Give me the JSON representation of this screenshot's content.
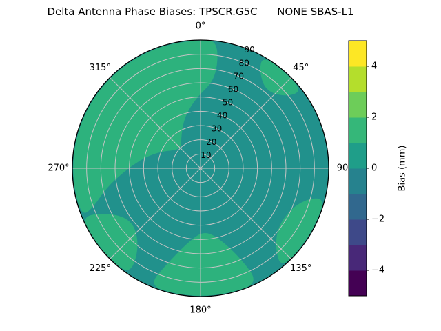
{
  "chart_data": {
    "type": "heatmap",
    "projection": "polar",
    "title": "Delta Antenna Phase Biases: TPSCR.G5C      NONE SBAS-L1",
    "theta_ticks": [
      {
        "angle": 0,
        "label": "0°"
      },
      {
        "angle": 45,
        "label": "45°"
      },
      {
        "angle": 90,
        "label": "90"
      },
      {
        "angle": 135,
        "label": "135°"
      },
      {
        "angle": 180,
        "label": "180°"
      },
      {
        "angle": 225,
        "label": "225°"
      },
      {
        "angle": 270,
        "label": "270°"
      },
      {
        "angle": 315,
        "label": "315°"
      }
    ],
    "r_ticks": [
      10,
      20,
      30,
      40,
      50,
      60,
      70,
      80,
      90
    ],
    "r_max": 90,
    "r_label_angle": 22.5,
    "grid": true,
    "grid_color": "#c4c4c4",
    "base": {
      "value_mm": 0,
      "color": "#21918c"
    },
    "regions": [
      {
        "name": "upper-left-lobe",
        "value_mm": 1.5,
        "color": "#2db27d",
        "points": [
          [
            248,
            90
          ],
          [
            262,
            90
          ],
          [
            276,
            90
          ],
          [
            290,
            90
          ],
          [
            304,
            90
          ],
          [
            318,
            90
          ],
          [
            332,
            90
          ],
          [
            346,
            90
          ],
          [
            0,
            90
          ],
          [
            8,
            90
          ],
          [
            10,
            64
          ],
          [
            357,
            50
          ],
          [
            343,
            38
          ],
          [
            330,
            27
          ],
          [
            317,
            20
          ],
          [
            305,
            22
          ],
          [
            293,
            30
          ],
          [
            281,
            40
          ],
          [
            269,
            52
          ],
          [
            258,
            68
          ],
          [
            250,
            80
          ]
        ]
      },
      {
        "name": "lower-left-band",
        "value_mm": 1.5,
        "color": "#2db27d",
        "points": [
          [
            214,
            90
          ],
          [
            226,
            90
          ],
          [
            238,
            90
          ],
          [
            248,
            90
          ],
          [
            245,
            74
          ],
          [
            236,
            62
          ],
          [
            225,
            63
          ],
          [
            216,
            75
          ]
        ]
      },
      {
        "name": "bottom-lobe",
        "value_mm": 1.5,
        "color": "#2db27d",
        "points": [
          [
            153,
            90
          ],
          [
            165,
            90
          ],
          [
            178,
            90
          ],
          [
            191,
            90
          ],
          [
            204,
            90
          ],
          [
            199,
            70
          ],
          [
            189,
            52
          ],
          [
            177,
            44
          ],
          [
            165,
            51
          ],
          [
            156,
            69
          ]
        ]
      },
      {
        "name": "right-patch",
        "value_mm": 1.5,
        "color": "#2db27d",
        "points": [
          [
            104,
            90
          ],
          [
            116,
            90
          ],
          [
            129,
            90
          ],
          [
            141,
            90
          ],
          [
            137,
            77
          ],
          [
            127,
            68
          ],
          [
            113,
            70
          ],
          [
            105,
            80
          ]
        ]
      },
      {
        "name": "upper-right-patch",
        "value_mm": 1.5,
        "color": "#2db27d",
        "points": [
          [
            29,
            90
          ],
          [
            40,
            90
          ],
          [
            53,
            90
          ],
          [
            50,
            78
          ],
          [
            40,
            71
          ],
          [
            31,
            80
          ]
        ]
      }
    ],
    "colorbar": {
      "label": "Bias (mm)",
      "min": -5,
      "max": 5,
      "colormap": "viridis",
      "ticks": [
        {
          "value": 4,
          "label": "4"
        },
        {
          "value": 2,
          "label": "2"
        },
        {
          "value": 0,
          "label": "0"
        },
        {
          "value": -2,
          "label": "−2"
        },
        {
          "value": -4,
          "label": "−4"
        }
      ],
      "colors": [
        "#440154",
        "#482878",
        "#3e4989",
        "#31688e",
        "#26828e",
        "#1f9e89",
        "#35b779",
        "#6dcd59",
        "#b4de2c",
        "#fde725"
      ]
    }
  }
}
